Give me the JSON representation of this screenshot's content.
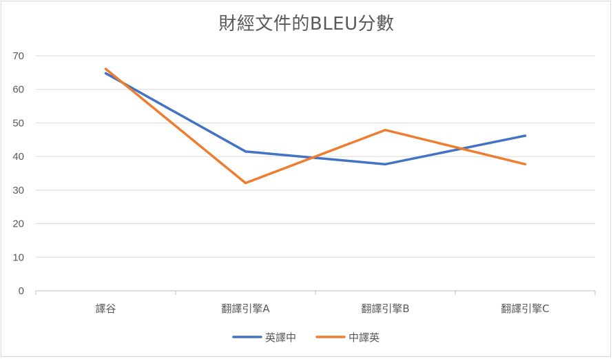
{
  "chart_data": {
    "type": "line",
    "title": "財經文件的BLEU分數",
    "categories": [
      "譯谷",
      "翻譯引擎A",
      "翻譯引擎B",
      "翻譯引擎C"
    ],
    "series": [
      {
        "name": "英譯中",
        "values": [
          64.8,
          41.5,
          37.7,
          46.2
        ],
        "color": "#4472C4"
      },
      {
        "name": "中譯英",
        "values": [
          66.1,
          32.1,
          47.9,
          37.7
        ],
        "color": "#ED7D31"
      }
    ],
    "ylim": [
      0,
      70
    ],
    "yticks": [
      "0",
      "10",
      "20",
      "30",
      "40",
      "50",
      "60",
      "70"
    ],
    "grid": true,
    "legend_position": "bottom"
  }
}
